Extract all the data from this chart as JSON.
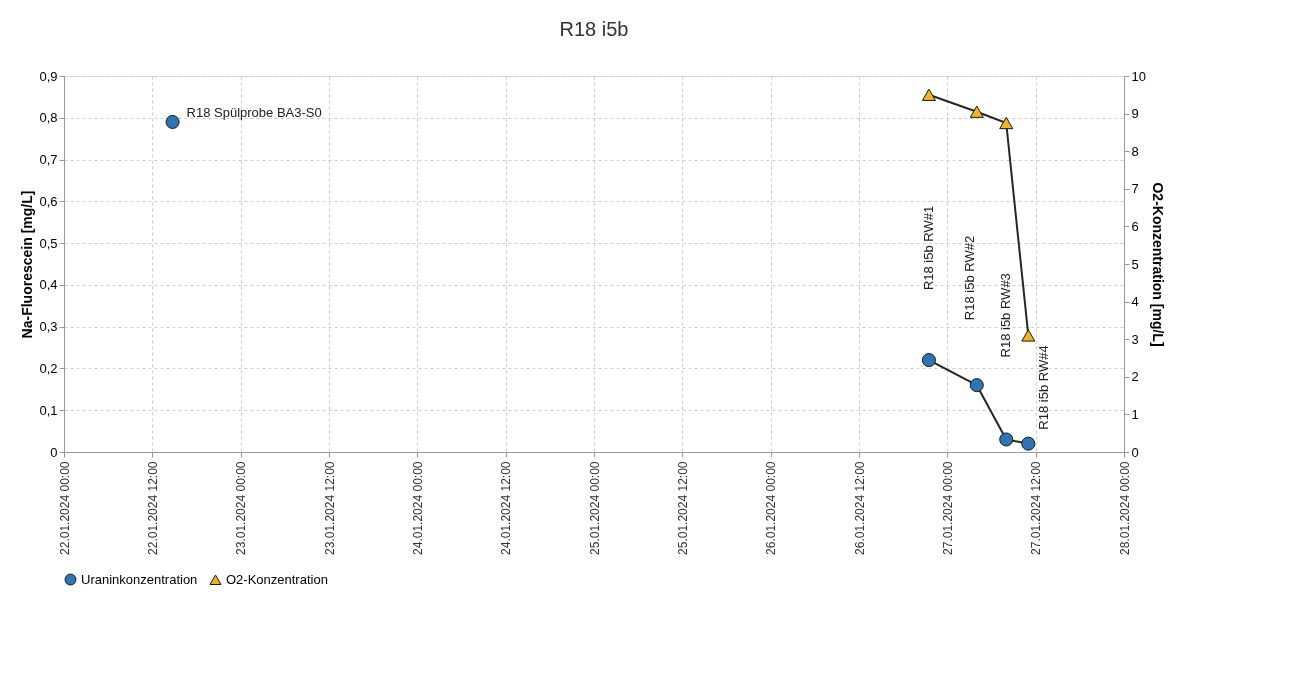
{
  "chart_data": {
    "type": "line",
    "title": "R18 i5b",
    "ylabel": "Na-Fluorescein [mg/L]",
    "y2label": "O2-Konzentration  [mg/L]",
    "series": [
      {
        "name": "Uraninkonzentration",
        "color": "#2e75b6",
        "marker": "circle",
        "x": [
          "2024-01-22T14:45",
          "2024-01-24T12:00",
          "2024-01-26T21:30",
          "2024-01-27T04:00",
          "2024-01-27T08:00",
          "2024-01-27T11:00"
        ],
        "values": [
          0.79,
          null,
          0.22,
          0.16,
          0.03,
          0.02
        ]
      },
      {
        "name": "O2-Konzentration",
        "color": "#f0b323",
        "marker": "triangle",
        "axis": "y2",
        "x": [
          "2024-01-26T21:30",
          "2024-01-27T04:00",
          "2024-01-27T08:00",
          "2024-01-27T11:00"
        ],
        "values": [
          9.5,
          9.05,
          8.75,
          3.1
        ]
      }
    ],
    "xlim": [
      "2024-01-22T00:00",
      "2024-01-28T00:00"
    ],
    "xticks": [
      {
        "value": "2024-01-22T00:00",
        "label": "22.01.2024 00:00"
      },
      {
        "value": "2024-01-22T12:00",
        "label": "22.01.2024 12:00"
      },
      {
        "value": "2024-01-23T00:00",
        "label": "23.01.2024 00:00"
      },
      {
        "value": "2024-01-23T12:00",
        "label": "23.01.2024 12:00"
      },
      {
        "value": "2024-01-24T00:00",
        "label": "24.01.2024 00:00"
      },
      {
        "value": "2024-01-24T12:00",
        "label": "24.01.2024 12:00"
      },
      {
        "value": "2024-01-25T00:00",
        "label": "25.01.2024 00:00"
      },
      {
        "value": "2024-01-25T12:00",
        "label": "25.01.2024 12:00"
      },
      {
        "value": "2024-01-26T00:00",
        "label": "26.01.2024 00:00"
      },
      {
        "value": "2024-01-26T12:00",
        "label": "26.01.2024 12:00"
      },
      {
        "value": "2024-01-27T00:00",
        "label": "27.01.2024 00:00"
      },
      {
        "value": "2024-01-27T12:00",
        "label": "27.01.2024 12:00"
      },
      {
        "value": "2024-01-28T00:00",
        "label": "28.01.2024 00:00"
      }
    ],
    "ylim": [
      0,
      0.9
    ],
    "yticks": [
      0,
      {
        "value": 0.1,
        "label": "0,1"
      },
      {
        "value": 0.2,
        "label": "0,2"
      },
      {
        "value": 0.3,
        "label": "0,3"
      },
      {
        "value": 0.4,
        "label": "0,4"
      },
      {
        "value": 0.5,
        "label": "0,5"
      },
      {
        "value": 0.6,
        "label": "0,6"
      },
      {
        "value": 0.7,
        "label": "0,7"
      },
      {
        "value": 0.8,
        "label": "0,8"
      },
      {
        "value": 0.9,
        "label": "0,9"
      }
    ],
    "y2lim": [
      0,
      10
    ],
    "y2ticks": [
      0,
      1,
      2,
      3,
      4,
      5,
      6,
      7,
      8,
      9,
      10
    ],
    "annotations": [
      {
        "text": "R18 Spülprobe BA3-S0",
        "x": "2024-01-22T14:45",
        "y": 0.79
      },
      "R18 i5b RW#1",
      "R18 i5b RW#2",
      "R18 i5b RW#3",
      {
        "text": "R18 i5b RW#4",
        "x": "2024-01-27T11:00",
        "y": 0.02
      }
    ],
    "grid": true,
    "legend": "bottom"
  }
}
